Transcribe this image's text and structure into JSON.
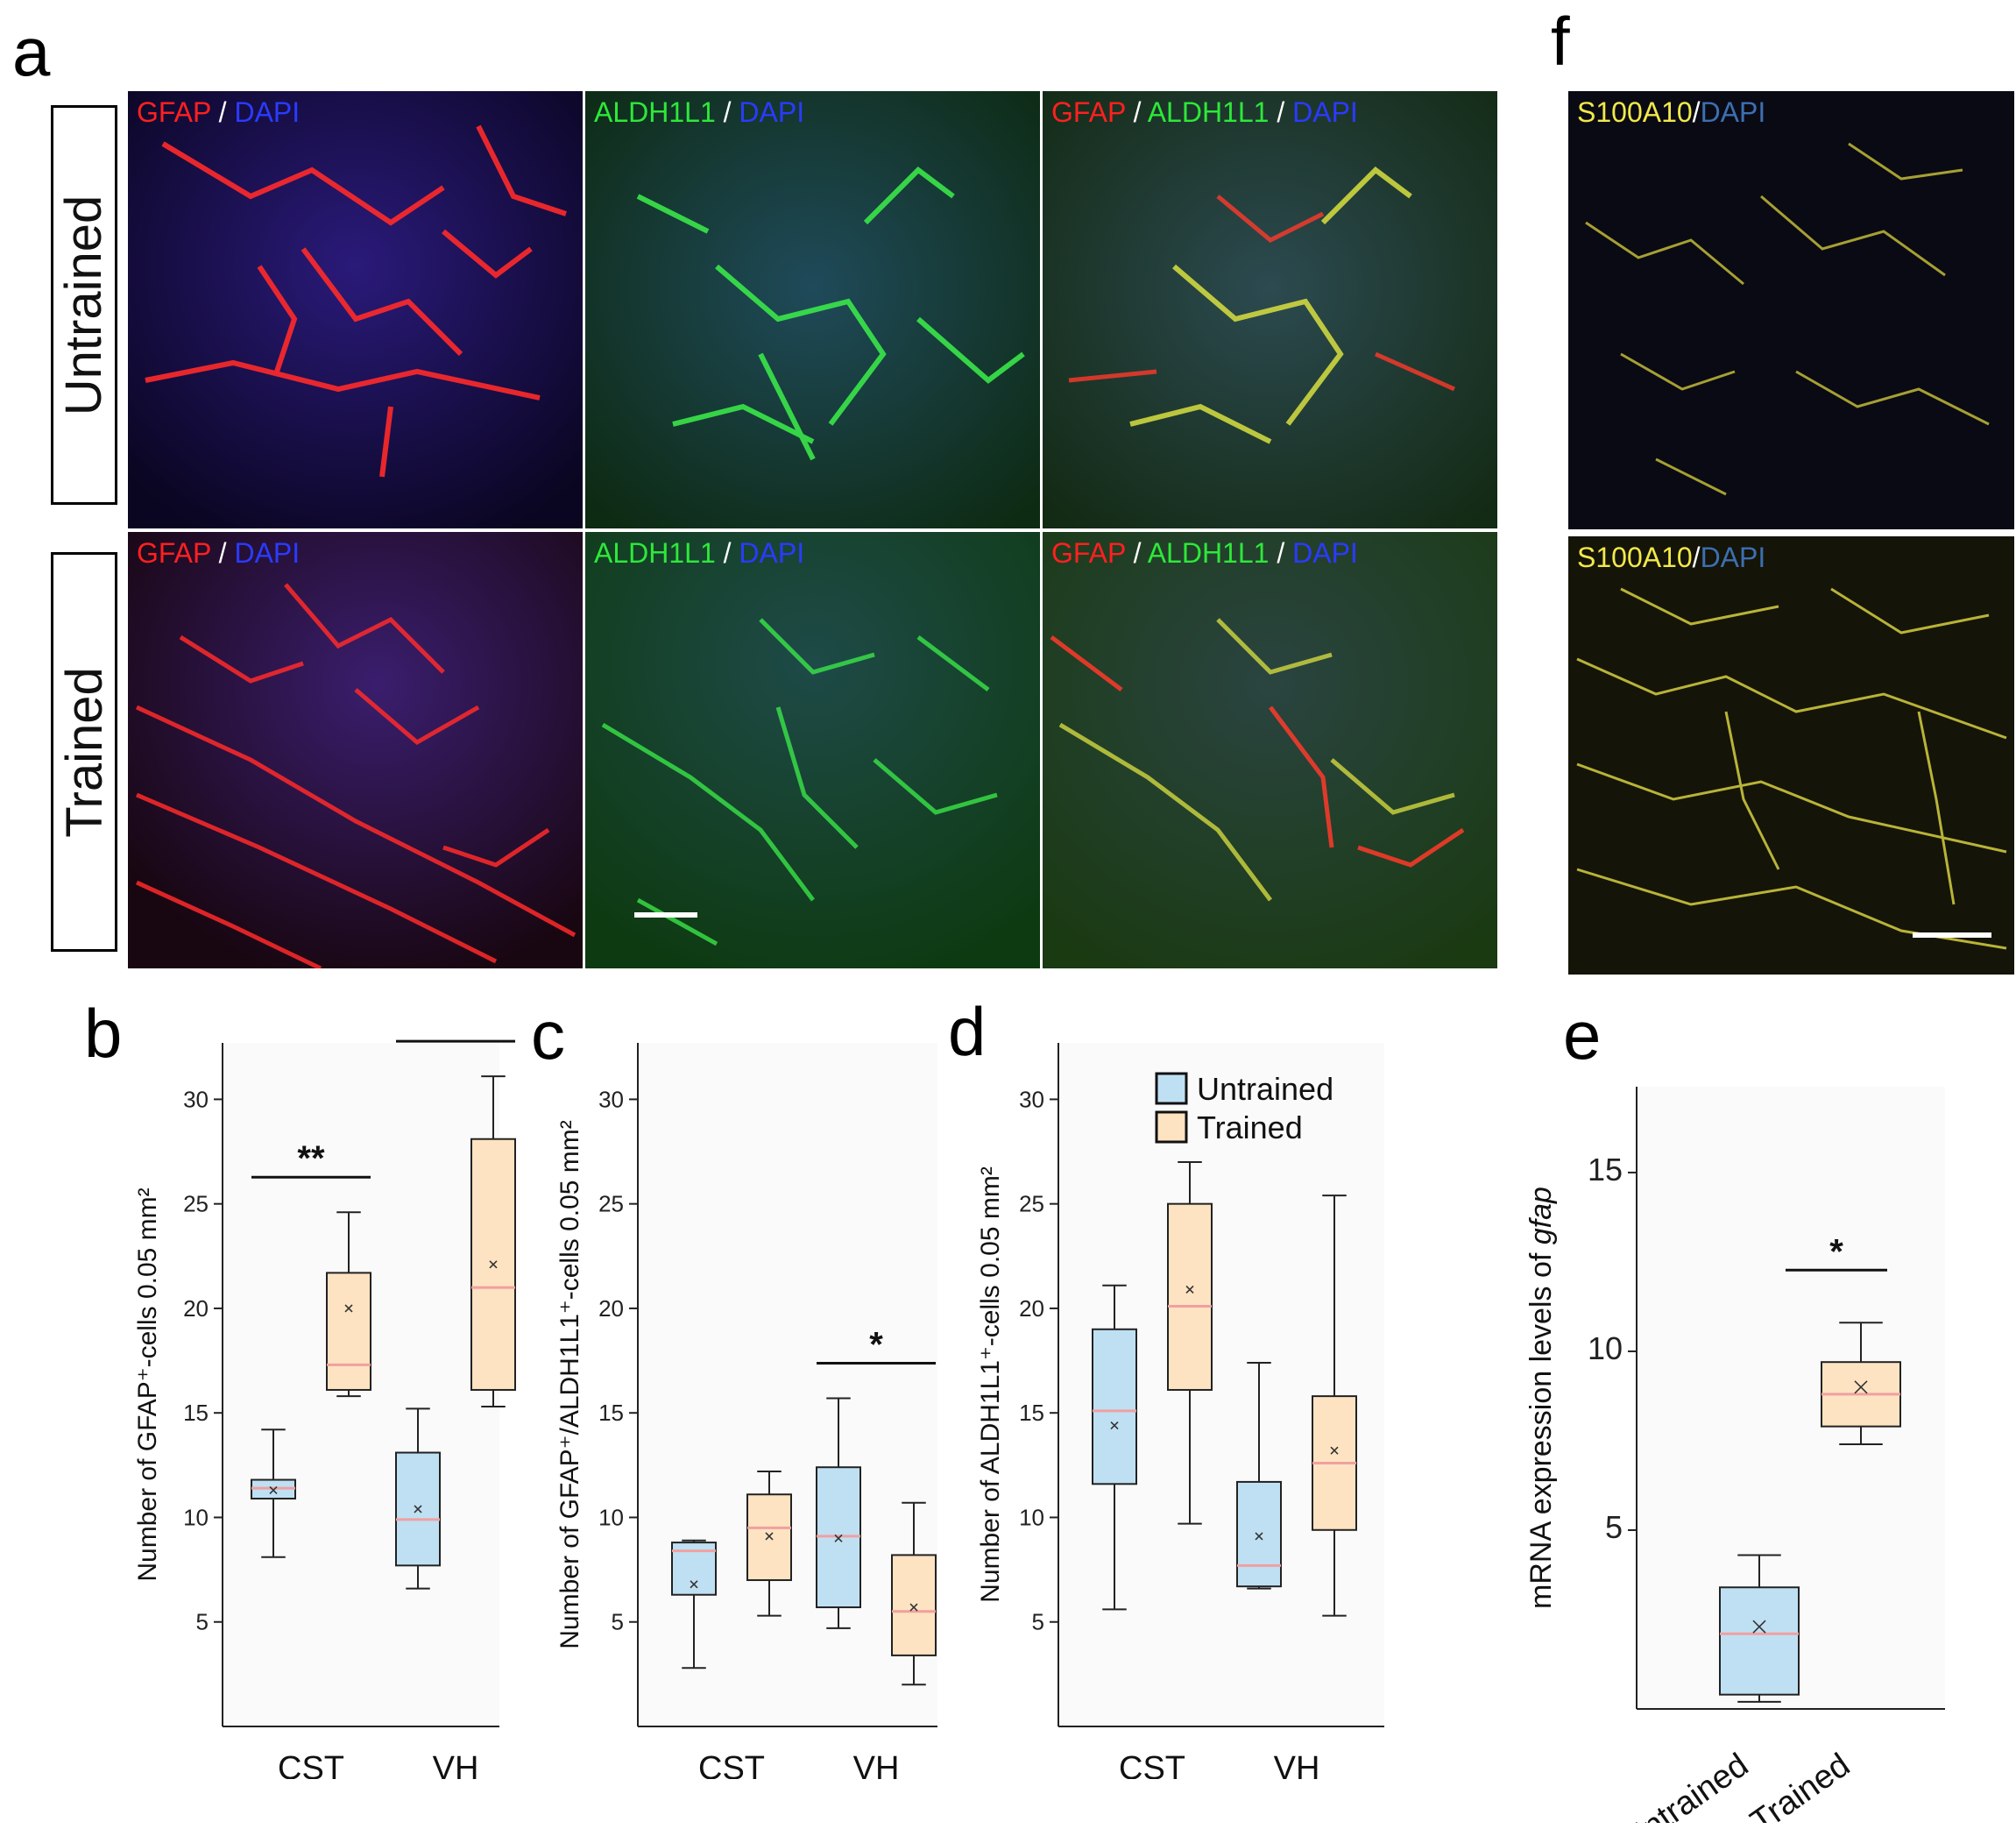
{
  "panel_letters": {
    "a": "a",
    "b": "b",
    "c": "c",
    "d": "d",
    "e": "e",
    "f": "f"
  },
  "rows": {
    "untrained": "Untrained",
    "trained": "Trained"
  },
  "micro_labels": {
    "gfap": "GFAP",
    "aldh": "ALDH1L1",
    "dapi": "DAPI",
    "s100": "S100A10",
    "slash": " / ",
    "slash_tight": "/"
  },
  "colors": {
    "untrained_fill": "#bfe0f3",
    "trained_fill": "#fde3c1",
    "median_line": "#f0a0a0",
    "gfap_red": "#ff2020",
    "aldh_green": "#2ee83a",
    "dapi_blue": "#2a3bff",
    "s100_yellow": "#f1e84a"
  },
  "chart_data": [
    {
      "id": "b",
      "type": "box",
      "ylabel": "Number of GFAP⁺-cells 0.05 mm²",
      "categories": [
        "CST",
        "VH"
      ],
      "yticks": [
        5,
        10,
        15,
        20,
        25,
        30
      ],
      "ylim": [
        0,
        32.7
      ],
      "series": [
        {
          "name": "Untrained",
          "boxes": [
            {
              "min": 8.1,
              "q1": 10.9,
              "median": 11.4,
              "q3": 11.8,
              "max": 14.2,
              "mean": 11.3
            },
            {
              "min": 6.6,
              "q1": 7.7,
              "median": 9.9,
              "q3": 13.1,
              "max": 15.2,
              "mean": 10.4
            }
          ]
        },
        {
          "name": "Trained",
          "boxes": [
            {
              "min": 15.8,
              "q1": 16.1,
              "median": 17.3,
              "q3": 21.7,
              "max": 24.6,
              "mean": 20.0
            },
            {
              "min": 15.3,
              "q1": 16.1,
              "median": 21.0,
              "q3": 28.1,
              "max": 31.1,
              "mean": 22.1
            }
          ]
        }
      ],
      "significance": [
        {
          "category": "CST",
          "label": "**"
        },
        {
          "category": "VH",
          "label": "**"
        }
      ]
    },
    {
      "id": "c",
      "type": "box",
      "ylabel": "Number of GFAP⁺/ALDH1L1⁺-cells 0.05 mm²",
      "categories": [
        "CST",
        "VH"
      ],
      "yticks": [
        5,
        10,
        15,
        20,
        25,
        30
      ],
      "ylim": [
        0,
        32.7
      ],
      "series": [
        {
          "name": "Untrained",
          "boxes": [
            {
              "min": 2.8,
              "q1": 6.3,
              "median": 8.4,
              "q3": 8.8,
              "max": 8.9,
              "mean": 6.8
            },
            {
              "min": 4.7,
              "q1": 5.7,
              "median": 9.1,
              "q3": 12.4,
              "max": 15.7,
              "mean": 9.0
            }
          ]
        },
        {
          "name": "Trained",
          "boxes": [
            {
              "min": 5.3,
              "q1": 7.0,
              "median": 9.5,
              "q3": 11.1,
              "max": 12.2,
              "mean": 9.1
            },
            {
              "min": 2.0,
              "q1": 3.4,
              "median": 5.5,
              "q3": 8.2,
              "max": 10.7,
              "mean": 5.7
            }
          ]
        }
      ],
      "significance": [
        {
          "category": "VH",
          "label": "*"
        }
      ]
    },
    {
      "id": "d",
      "type": "box",
      "ylabel": "Number of ALDH1L1⁺-cells 0.05 mm²",
      "categories": [
        "CST",
        "VH"
      ],
      "yticks": [
        5,
        10,
        15,
        20,
        25,
        30
      ],
      "ylim": [
        0,
        32.7
      ],
      "legend": {
        "entries": [
          "Untrained",
          "Trained"
        ],
        "position": "top-right"
      },
      "series": [
        {
          "name": "Untrained",
          "boxes": [
            {
              "min": 5.6,
              "q1": 11.6,
              "median": 15.1,
              "q3": 19.0,
              "max": 21.1,
              "mean": 14.4
            },
            {
              "min": 6.6,
              "q1": 6.7,
              "median": 7.7,
              "q3": 11.7,
              "max": 17.4,
              "mean": 9.1
            }
          ]
        },
        {
          "name": "Trained",
          "boxes": [
            {
              "min": 9.7,
              "q1": 16.1,
              "median": 20.1,
              "q3": 25.0,
              "max": 27.0,
              "mean": 20.9
            },
            {
              "min": 5.3,
              "q1": 9.4,
              "median": 12.6,
              "q3": 15.8,
              "max": 25.4,
              "mean": 13.2
            }
          ]
        }
      ],
      "significance": []
    },
    {
      "id": "e",
      "type": "box",
      "ylabel": "mRNA expression levels of ",
      "ylabel_italic": "gfap",
      "categories": [
        "Untrained",
        "Trained"
      ],
      "yticks": [
        5,
        10,
        15
      ],
      "ylim": [
        0,
        17.4
      ],
      "series": [
        {
          "name": "Untrained",
          "boxes": [
            {
              "min": 0.2,
              "q1": 0.4,
              "median": 2.1,
              "q3": 3.4,
              "max": 4.3,
              "mean": 2.3
            }
          ]
        },
        {
          "name": "Trained",
          "boxes": [
            {
              "min": 7.4,
              "q1": 7.9,
              "median": 8.8,
              "q3": 9.7,
              "max": 10.8,
              "mean": 9.0
            }
          ]
        }
      ],
      "significance": [
        {
          "label": "*"
        }
      ]
    }
  ]
}
